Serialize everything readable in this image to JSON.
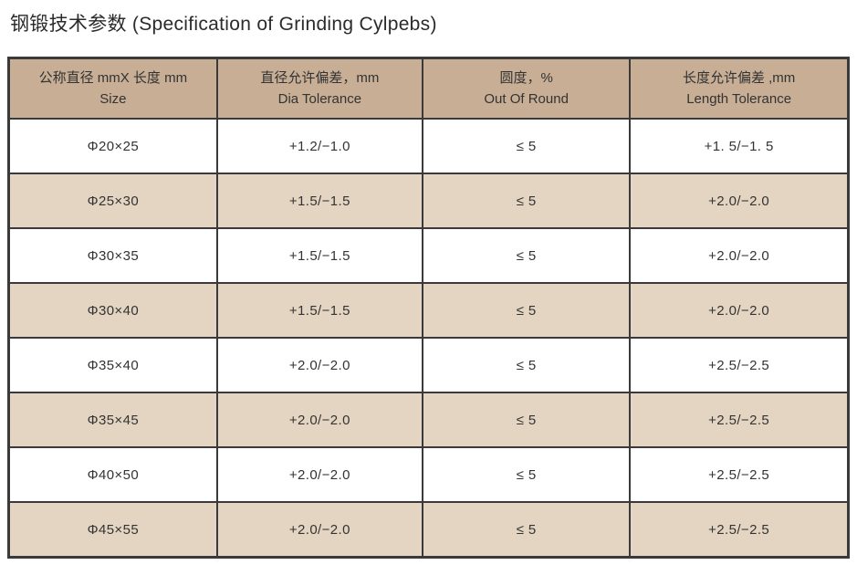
{
  "page": {
    "title": "钢锻技术参数 (Specification of Grinding Cylpebs)"
  },
  "colors": {
    "header_bg": "#c7ae95",
    "alt_row_bg": "#e4d5c3",
    "border": "#3a3a3a",
    "text": "#333333"
  },
  "table": {
    "columns": [
      {
        "zh": "公称直径 mmX 长度 mm",
        "en": "Size"
      },
      {
        "zh": "直径允许偏差，mm",
        "en": "Dia Tolerance"
      },
      {
        "zh": "圆度，%",
        "en": "Out Of Round"
      },
      {
        "zh": "长度允许偏差 ,mm",
        "en": "Length Tolerance"
      }
    ],
    "rows": [
      [
        "Φ20×25",
        "+1.2/−1.0",
        "≤ 5",
        "+1. 5/−1. 5"
      ],
      [
        "Φ25×30",
        "+1.5/−1.5",
        "≤ 5",
        "+2.0/−2.0"
      ],
      [
        "Φ30×35",
        "+1.5/−1.5",
        "≤ 5",
        "+2.0/−2.0"
      ],
      [
        "Φ30×40",
        "+1.5/−1.5",
        "≤ 5",
        "+2.0/−2.0"
      ],
      [
        "Φ35×40",
        "+2.0/−2.0",
        "≤ 5",
        "+2.5/−2.5"
      ],
      [
        "Φ35×45",
        "+2.0/−2.0",
        "≤ 5",
        "+2.5/−2.5"
      ],
      [
        "Φ40×50",
        "+2.0/−2.0",
        "≤ 5",
        "+2.5/−2.5"
      ],
      [
        "Φ45×55",
        "+2.0/−2.0",
        "≤ 5",
        "+2.5/−2.5"
      ]
    ]
  }
}
